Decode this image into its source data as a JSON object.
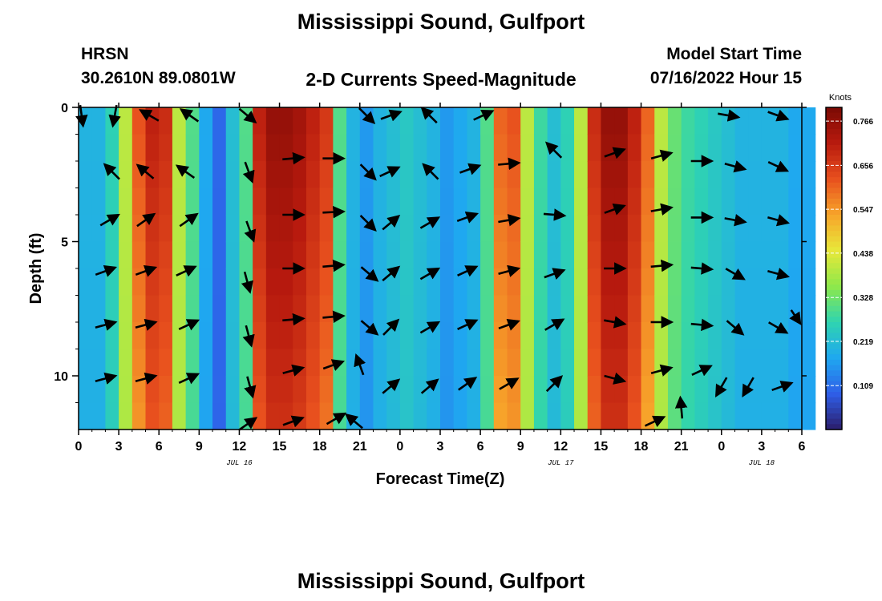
{
  "page": {
    "title": "Mississippi Sound, Gulfport",
    "title_repeat": "Mississippi Sound, Gulfport",
    "station_code": "HRSN",
    "station_coords": "30.2610N  89.0801W",
    "model_start_label": "Model Start Time",
    "model_start_value": "07/16/2022 Hour 15",
    "plot_title": "2-D Currents Speed-Magnitude"
  },
  "chart_data": {
    "type": "heatmap",
    "title": "2-D Currents Speed-Magnitude",
    "xlabel": "Forecast Time(Z)",
    "ylabel": "Depth (ft)",
    "x_ticks": [
      "0",
      "3",
      "6",
      "9",
      "12",
      "15",
      "18",
      "21",
      "0",
      "3",
      "6",
      "9",
      "12",
      "15",
      "18",
      "21",
      "0",
      "3",
      "6"
    ],
    "x_range_hours": [
      0,
      54
    ],
    "date_labels": [
      {
        "text": "JUL 16",
        "hour": 12
      },
      {
        "text": "JUL 17",
        "hour": 36
      },
      {
        "text": "JUL 18",
        "hour": 51
      }
    ],
    "y_ticks": [
      "0",
      "5",
      "10"
    ],
    "y_range_ft": [
      0,
      12
    ],
    "y_inverted": true,
    "colorbar": {
      "label": "Knots",
      "min": 0.0,
      "max": 0.8,
      "ticks": [
        "0.766",
        "0.656",
        "0.547",
        "0.438",
        "0.328",
        "0.219",
        "0.109"
      ],
      "colors": [
        "#2b1d6b",
        "#2f5fe8",
        "#1fa8f0",
        "#2fd4b0",
        "#8ee84a",
        "#e8e83a",
        "#f7a42a",
        "#e8501e",
        "#b81a0e",
        "#7a0a04"
      ]
    },
    "depth_levels_ft": [
      0,
      1,
      2,
      3,
      4,
      5,
      6,
      7,
      8,
      9,
      10,
      11,
      12
    ],
    "speed_profile_knots": [
      0.2,
      0.2,
      0.26,
      0.4,
      0.62,
      0.7,
      0.68,
      0.4,
      0.3,
      0.18,
      0.1,
      0.22,
      0.3,
      0.7,
      0.76,
      0.76,
      0.74,
      0.7,
      0.66,
      0.3,
      0.2,
      0.16,
      0.2,
      0.22,
      0.24,
      0.22,
      0.2,
      0.16,
      0.18,
      0.2,
      0.3,
      0.6,
      0.62,
      0.4,
      0.28,
      0.22,
      0.26,
      0.4,
      0.68,
      0.76,
      0.76,
      0.7,
      0.6,
      0.4,
      0.32,
      0.28,
      0.26,
      0.24,
      0.22,
      0.2,
      0.2,
      0.2,
      0.2,
      0.18,
      0.18
    ],
    "vectors": [
      {
        "hour": 0.2,
        "depth": 0.3,
        "angle": 80
      },
      {
        "hour": 2.7,
        "depth": 0.3,
        "angle": 100
      },
      {
        "hour": 5.3,
        "depth": 0.3,
        "angle": 210
      },
      {
        "hour": 8.3,
        "depth": 0.3,
        "angle": 215
      },
      {
        "hour": 12.6,
        "depth": 0.3,
        "angle": 40
      },
      {
        "hour": 21.5,
        "depth": 0.3,
        "angle": 45
      },
      {
        "hour": 23.3,
        "depth": 0.3,
        "angle": -20
      },
      {
        "hour": 26.2,
        "depth": 0.3,
        "angle": -135
      },
      {
        "hour": 30.2,
        "depth": 0.3,
        "angle": -25
      },
      {
        "hour": 48.5,
        "depth": 0.3,
        "angle": 10
      },
      {
        "hour": 52.2,
        "depth": 0.3,
        "angle": 20
      },
      {
        "hour": 2.5,
        "depth": 2.4,
        "angle": -135
      },
      {
        "hour": 5.0,
        "depth": 2.4,
        "angle": -140
      },
      {
        "hour": 8.0,
        "depth": 2.4,
        "angle": -145
      },
      {
        "hour": 12.7,
        "depth": 2.4,
        "angle": 70
      },
      {
        "hour": 16.0,
        "depth": 1.9,
        "angle": -5
      },
      {
        "hour": 19.0,
        "depth": 1.9,
        "angle": 0
      },
      {
        "hour": 21.6,
        "depth": 2.4,
        "angle": 45
      },
      {
        "hour": 23.2,
        "depth": 2.4,
        "angle": -25
      },
      {
        "hour": 26.3,
        "depth": 2.4,
        "angle": -135
      },
      {
        "hour": 29.2,
        "depth": 2.3,
        "angle": -20
      },
      {
        "hour": 32.1,
        "depth": 2.1,
        "angle": -5
      },
      {
        "hour": 35.5,
        "depth": 1.6,
        "angle": -135
      },
      {
        "hour": 40.0,
        "depth": 1.7,
        "angle": -20
      },
      {
        "hour": 43.5,
        "depth": 1.8,
        "angle": -15
      },
      {
        "hour": 46.5,
        "depth": 2.0,
        "angle": 0
      },
      {
        "hour": 49.0,
        "depth": 2.2,
        "angle": 15
      },
      {
        "hour": 52.2,
        "depth": 2.2,
        "angle": 25
      },
      {
        "hour": 2.3,
        "depth": 4.2,
        "angle": -30
      },
      {
        "hour": 5.0,
        "depth": 4.2,
        "angle": -35
      },
      {
        "hour": 8.2,
        "depth": 4.2,
        "angle": -35
      },
      {
        "hour": 12.8,
        "depth": 4.6,
        "angle": 70
      },
      {
        "hour": 16.0,
        "depth": 4.0,
        "angle": 0
      },
      {
        "hour": 19.0,
        "depth": 3.9,
        "angle": -3
      },
      {
        "hour": 21.6,
        "depth": 4.3,
        "angle": 45
      },
      {
        "hour": 23.3,
        "depth": 4.3,
        "angle": -40
      },
      {
        "hour": 26.2,
        "depth": 4.3,
        "angle": -30
      },
      {
        "hour": 29.0,
        "depth": 4.1,
        "angle": -20
      },
      {
        "hour": 32.1,
        "depth": 4.2,
        "angle": -10
      },
      {
        "hour": 35.5,
        "depth": 4.0,
        "angle": 5
      },
      {
        "hour": 40.0,
        "depth": 3.8,
        "angle": -20
      },
      {
        "hour": 43.5,
        "depth": 3.8,
        "angle": -10
      },
      {
        "hour": 46.5,
        "depth": 4.1,
        "angle": 0
      },
      {
        "hour": 49.0,
        "depth": 4.2,
        "angle": 10
      },
      {
        "hour": 52.2,
        "depth": 4.2,
        "angle": 15
      },
      {
        "hour": 2.0,
        "depth": 6.1,
        "angle": -20
      },
      {
        "hour": 5.0,
        "depth": 6.1,
        "angle": -20
      },
      {
        "hour": 8.0,
        "depth": 6.1,
        "angle": -25
      },
      {
        "hour": 12.6,
        "depth": 6.5,
        "angle": 75
      },
      {
        "hour": 16.0,
        "depth": 6.0,
        "angle": 0
      },
      {
        "hour": 19.0,
        "depth": 5.9,
        "angle": -5
      },
      {
        "hour": 21.7,
        "depth": 6.2,
        "angle": 40
      },
      {
        "hour": 23.3,
        "depth": 6.2,
        "angle": -40
      },
      {
        "hour": 26.2,
        "depth": 6.2,
        "angle": -30
      },
      {
        "hour": 29.0,
        "depth": 6.1,
        "angle": -25
      },
      {
        "hour": 32.1,
        "depth": 6.1,
        "angle": -15
      },
      {
        "hour": 35.5,
        "depth": 6.2,
        "angle": -20
      },
      {
        "hour": 40.0,
        "depth": 6.0,
        "angle": 0
      },
      {
        "hour": 43.5,
        "depth": 5.9,
        "angle": -5
      },
      {
        "hour": 46.5,
        "depth": 6.0,
        "angle": 5
      },
      {
        "hour": 49.0,
        "depth": 6.2,
        "angle": 30
      },
      {
        "hour": 52.2,
        "depth": 6.2,
        "angle": 15
      },
      {
        "hour": 2.0,
        "depth": 8.1,
        "angle": -15
      },
      {
        "hour": 5.0,
        "depth": 8.1,
        "angle": -15
      },
      {
        "hour": 8.2,
        "depth": 8.1,
        "angle": -25
      },
      {
        "hour": 12.7,
        "depth": 8.5,
        "angle": 75
      },
      {
        "hour": 16.0,
        "depth": 7.9,
        "angle": -5
      },
      {
        "hour": 19.0,
        "depth": 7.8,
        "angle": -5
      },
      {
        "hour": 21.7,
        "depth": 8.2,
        "angle": 40
      },
      {
        "hour": 23.3,
        "depth": 8.2,
        "angle": -45
      },
      {
        "hour": 26.2,
        "depth": 8.2,
        "angle": -30
      },
      {
        "hour": 29.0,
        "depth": 8.1,
        "angle": -25
      },
      {
        "hour": 32.1,
        "depth": 8.1,
        "angle": -20
      },
      {
        "hour": 35.5,
        "depth": 8.1,
        "angle": -30
      },
      {
        "hour": 40.0,
        "depth": 8.0,
        "angle": 10
      },
      {
        "hour": 43.5,
        "depth": 8.0,
        "angle": 0
      },
      {
        "hour": 46.5,
        "depth": 8.1,
        "angle": 5
      },
      {
        "hour": 49.0,
        "depth": 8.2,
        "angle": 40
      },
      {
        "hour": 52.2,
        "depth": 8.2,
        "angle": 30
      },
      {
        "hour": 53.8,
        "depth": 7.8,
        "angle": 40
      },
      {
        "hour": 2.0,
        "depth": 10.1,
        "angle": -15
      },
      {
        "hour": 5.0,
        "depth": 10.1,
        "angle": -15
      },
      {
        "hour": 8.2,
        "depth": 10.1,
        "angle": -25
      },
      {
        "hour": 12.8,
        "depth": 10.4,
        "angle": 75
      },
      {
        "hour": 16.0,
        "depth": 9.8,
        "angle": -15
      },
      {
        "hour": 19.0,
        "depth": 9.6,
        "angle": -20
      },
      {
        "hour": 21.0,
        "depth": 9.6,
        "angle": -110
      },
      {
        "hour": 23.3,
        "depth": 10.4,
        "angle": -40
      },
      {
        "hour": 26.2,
        "depth": 10.4,
        "angle": -40
      },
      {
        "hour": 29.0,
        "depth": 10.3,
        "angle": -35
      },
      {
        "hour": 32.1,
        "depth": 10.3,
        "angle": -30
      },
      {
        "hour": 35.5,
        "depth": 10.3,
        "angle": -45
      },
      {
        "hour": 40.0,
        "depth": 10.1,
        "angle": 15
      },
      {
        "hour": 43.5,
        "depth": 9.8,
        "angle": -15
      },
      {
        "hour": 46.5,
        "depth": 9.8,
        "angle": -25
      },
      {
        "hour": 48.0,
        "depth": 10.4,
        "angle": 120
      },
      {
        "hour": 50.0,
        "depth": 10.4,
        "angle": 120
      },
      {
        "hour": 52.5,
        "depth": 10.4,
        "angle": -20
      },
      {
        "hour": 12.6,
        "depth": 11.8,
        "angle": -35
      },
      {
        "hour": 16.0,
        "depth": 11.7,
        "angle": -20
      },
      {
        "hour": 19.2,
        "depth": 11.6,
        "angle": -30
      },
      {
        "hour": 20.6,
        "depth": 11.7,
        "angle": -140
      },
      {
        "hour": 43.0,
        "depth": 11.7,
        "angle": -25
      },
      {
        "hour": 45.0,
        "depth": 11.2,
        "angle": -95
      }
    ]
  }
}
